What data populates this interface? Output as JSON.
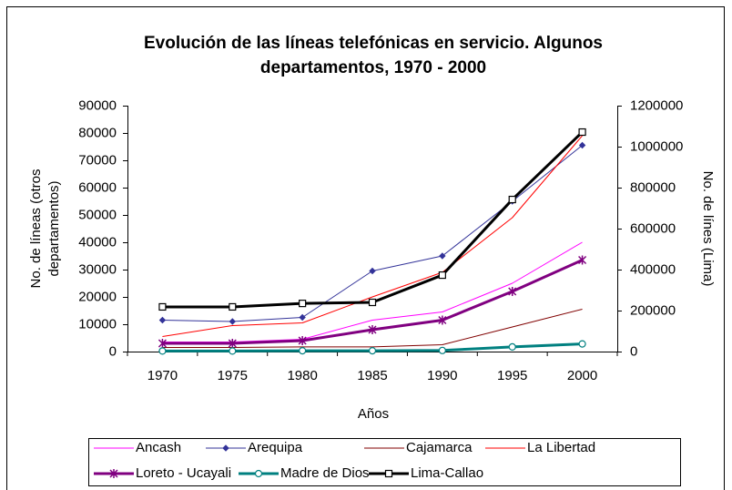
{
  "chart_data": {
    "type": "line",
    "title": [
      "Evolución de las líneas telefónicas en servicio. Algunos",
      "departamentos, 1970 - 2000"
    ],
    "xlabel": "Años",
    "ylabel": [
      "No. de líneas (otros",
      "departamentos)"
    ],
    "y2label": "No. de línes (Lima)",
    "categories": [
      "1970",
      "1975",
      "1980",
      "1985",
      "1990",
      "1995",
      "2000"
    ],
    "ylim": [
      0,
      90000
    ],
    "yticks": [
      0,
      10000,
      20000,
      30000,
      40000,
      50000,
      60000,
      70000,
      80000,
      90000
    ],
    "y2lim": [
      0,
      1200000
    ],
    "y2ticks": [
      0,
      200000,
      400000,
      600000,
      800000,
      1000000,
      1200000
    ],
    "legend": "bottom",
    "series": [
      {
        "name": "Ancash",
        "color": "#ff00ff",
        "line_width": 1,
        "marker": "none",
        "values": [
          3500,
          3500,
          4500,
          11500,
          14500,
          25000,
          40000
        ]
      },
      {
        "name": "Arequipa",
        "color": "#333399",
        "line_width": 1,
        "marker": "diamond",
        "values": [
          11500,
          11000,
          12500,
          29500,
          35000,
          55000,
          75500
        ]
      },
      {
        "name": "Cajamarca",
        "color": "#800000",
        "line_width": 1,
        "marker": "none",
        "values": [
          1500,
          1500,
          1700,
          1700,
          2500,
          9000,
          15500
        ]
      },
      {
        "name": "La Libertad",
        "color": "#ff0000",
        "line_width": 1,
        "marker": "none",
        "values": [
          5500,
          9500,
          10500,
          20000,
          29000,
          49000,
          79000
        ]
      },
      {
        "name": "Loreto - Ucayali",
        "color": "#800080",
        "line_width": 3,
        "marker": "asterisk",
        "values": [
          3000,
          3000,
          4000,
          8000,
          11500,
          22000,
          33500
        ]
      },
      {
        "name": "Madre de Dios",
        "color": "#008080",
        "line_width": 3,
        "marker": "circle",
        "values": [
          200,
          200,
          300,
          300,
          400,
          1700,
          2800
        ]
      },
      {
        "name": "Lima-Callao",
        "color": "#000000",
        "line_width": 3,
        "marker": "square",
        "axis": "y2",
        "values": [
          218000,
          218000,
          235000,
          240000,
          373000,
          742000,
          1071000
        ]
      }
    ]
  }
}
